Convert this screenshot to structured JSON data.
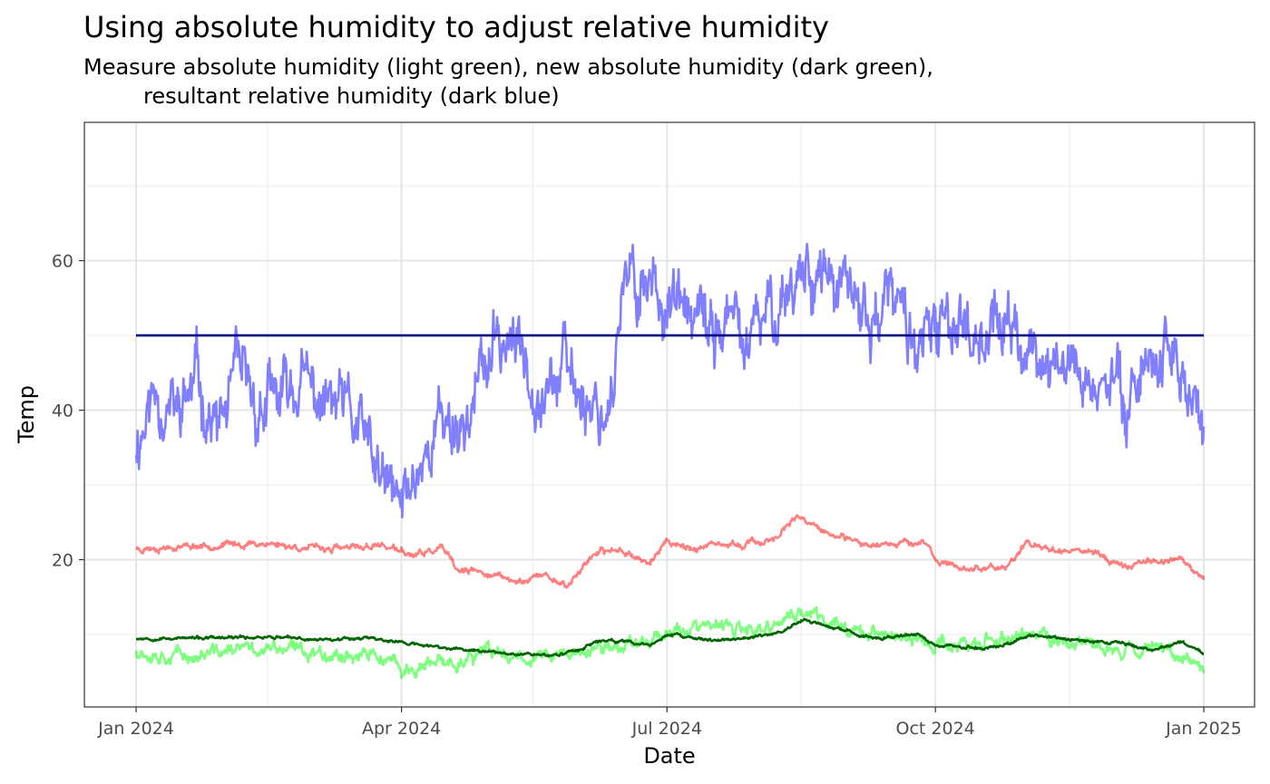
{
  "chart_data": {
    "type": "line",
    "title": "Using absolute humidity to adjust relative humidity",
    "subtitle_lines": [
      "Measure absolute humidity (light green), new absolute humidity (dark green),",
      "resultant relative humidity (dark blue)"
    ],
    "xlabel": "Date",
    "ylabel": "Temp",
    "x_range": [
      "2024-01-01",
      "2025-01-01"
    ],
    "ylim": [
      0.3,
      78.5
    ],
    "x_ticks": [
      {
        "date": "2024-01-01",
        "label": "Jan 2024"
      },
      {
        "date": "2024-04-01",
        "label": "Apr 2024"
      },
      {
        "date": "2024-07-01",
        "label": "Jul 2024"
      },
      {
        "date": "2024-10-01",
        "label": "Oct 2024"
      },
      {
        "date": "2025-01-01",
        "label": "Jan 2025"
      }
    ],
    "x_minor_ticks": [
      "2024-02-15",
      "2024-05-16",
      "2024-08-16",
      "2024-11-16"
    ],
    "y_ticks": [
      20,
      40,
      60
    ],
    "y_minor_ticks": [
      10,
      30,
      50,
      70
    ],
    "grid": true,
    "legend": "none",
    "series": [
      {
        "color": "#7f7fff",
        "opacity": 1,
        "noise": 5.5,
        "seed": 11,
        "points": [
          [
            "2024-01-01",
            36
          ],
          [
            "2024-01-08",
            43
          ],
          [
            "2024-01-15",
            39
          ],
          [
            "2024-01-22",
            44
          ],
          [
            "2024-01-29",
            37
          ],
          [
            "2024-02-05",
            44
          ],
          [
            "2024-02-12",
            40
          ],
          [
            "2024-02-19",
            41
          ],
          [
            "2024-02-26",
            44
          ],
          [
            "2024-03-04",
            41
          ],
          [
            "2024-03-11",
            40
          ],
          [
            "2024-03-18",
            37
          ],
          [
            "2024-03-25",
            30
          ],
          [
            "2024-04-01",
            27
          ],
          [
            "2024-04-08",
            34
          ],
          [
            "2024-04-15",
            39
          ],
          [
            "2024-04-22",
            38
          ],
          [
            "2024-04-29",
            45
          ],
          [
            "2024-05-06",
            50
          ],
          [
            "2024-05-13",
            47
          ],
          [
            "2024-05-20",
            44
          ],
          [
            "2024-05-27",
            45
          ],
          [
            "2024-06-03",
            42
          ],
          [
            "2024-06-10",
            40
          ],
          [
            "2024-06-17",
            56
          ],
          [
            "2024-06-24",
            58
          ],
          [
            "2024-07-01",
            55
          ],
          [
            "2024-07-08",
            52
          ],
          [
            "2024-07-15",
            50
          ],
          [
            "2024-07-22",
            52
          ],
          [
            "2024-07-29",
            48
          ],
          [
            "2024-08-05",
            53
          ],
          [
            "2024-08-12",
            57
          ],
          [
            "2024-08-19",
            60
          ],
          [
            "2024-08-26",
            57
          ],
          [
            "2024-09-02",
            54
          ],
          [
            "2024-09-09",
            52
          ],
          [
            "2024-09-16",
            55
          ],
          [
            "2024-09-23",
            50
          ],
          [
            "2024-09-30",
            48
          ],
          [
            "2024-10-07",
            53
          ],
          [
            "2024-10-14",
            51
          ],
          [
            "2024-10-21",
            52
          ],
          [
            "2024-10-28",
            50
          ],
          [
            "2024-11-04",
            47
          ],
          [
            "2024-11-11",
            45
          ],
          [
            "2024-11-18",
            47
          ],
          [
            "2024-11-25",
            43
          ],
          [
            "2024-12-02",
            42
          ],
          [
            "2024-12-09",
            45
          ],
          [
            "2024-12-16",
            48
          ],
          [
            "2024-12-23",
            47
          ],
          [
            "2025-01-01",
            37
          ]
        ]
      },
      {
        "color": "#000080",
        "opacity": 1,
        "noise": 0,
        "seed": 1,
        "points": [
          [
            "2024-01-01",
            50
          ],
          [
            "2025-01-01",
            50
          ]
        ]
      },
      {
        "color": "#ff0000",
        "opacity": 0.5,
        "noise": 0.55,
        "seed": 23,
        "points": [
          [
            "2024-01-01",
            21.5
          ],
          [
            "2024-01-15",
            21.8
          ],
          [
            "2024-02-01",
            22
          ],
          [
            "2024-02-15",
            22.2
          ],
          [
            "2024-03-01",
            21.5
          ],
          [
            "2024-03-15",
            21.5
          ],
          [
            "2024-03-25",
            22
          ],
          [
            "2024-04-05",
            20.5
          ],
          [
            "2024-04-15",
            21.5
          ],
          [
            "2024-04-20",
            18.5
          ],
          [
            "2024-05-01",
            18.2
          ],
          [
            "2024-05-10",
            17
          ],
          [
            "2024-05-20",
            18
          ],
          [
            "2024-05-28",
            16.5
          ],
          [
            "2024-06-05",
            20.5
          ],
          [
            "2024-06-15",
            21.5
          ],
          [
            "2024-06-25",
            19.5
          ],
          [
            "2024-07-01",
            22.5
          ],
          [
            "2024-07-10",
            21.5
          ],
          [
            "2024-07-25",
            22
          ],
          [
            "2024-08-05",
            22.5
          ],
          [
            "2024-08-15",
            25.5
          ],
          [
            "2024-08-25",
            23.5
          ],
          [
            "2024-09-05",
            22
          ],
          [
            "2024-09-20",
            22.5
          ],
          [
            "2024-09-28",
            22
          ],
          [
            "2024-10-02",
            19.5
          ],
          [
            "2024-10-15",
            18.8
          ],
          [
            "2024-10-25",
            19
          ],
          [
            "2024-11-01",
            22
          ],
          [
            "2024-11-12",
            21.5
          ],
          [
            "2024-11-25",
            21
          ],
          [
            "2024-12-05",
            19
          ],
          [
            "2024-12-15",
            20
          ],
          [
            "2024-12-25",
            20
          ],
          [
            "2025-01-01",
            17.5
          ]
        ]
      },
      {
        "color": "#00ff00",
        "opacity": 0.5,
        "noise": 1.2,
        "seed": 37,
        "points": [
          [
            "2024-01-01",
            8
          ],
          [
            "2024-01-20",
            7
          ],
          [
            "2024-02-05",
            8
          ],
          [
            "2024-02-20",
            8
          ],
          [
            "2024-03-10",
            7.5
          ],
          [
            "2024-03-25",
            7
          ],
          [
            "2024-04-01",
            5
          ],
          [
            "2024-04-15",
            6
          ],
          [
            "2024-05-01",
            7.5
          ],
          [
            "2024-05-20",
            7
          ],
          [
            "2024-06-01",
            7.5
          ],
          [
            "2024-06-15",
            8.5
          ],
          [
            "2024-06-25",
            9.5
          ],
          [
            "2024-07-01",
            10.5
          ],
          [
            "2024-07-20",
            11
          ],
          [
            "2024-08-01",
            10
          ],
          [
            "2024-08-15",
            13
          ],
          [
            "2024-09-01",
            11
          ],
          [
            "2024-09-20",
            9.5
          ],
          [
            "2024-10-01",
            8.5
          ],
          [
            "2024-10-20",
            9
          ],
          [
            "2024-11-01",
            10
          ],
          [
            "2024-11-15",
            9
          ],
          [
            "2024-12-01",
            8
          ],
          [
            "2024-12-20",
            8.5
          ],
          [
            "2025-01-01",
            5.5
          ]
        ]
      },
      {
        "color": "#006400",
        "opacity": 1,
        "noise": 0.25,
        "seed": 53,
        "points": [
          [
            "2024-01-01",
            9.5
          ],
          [
            "2024-02-01",
            9.5
          ],
          [
            "2024-02-15",
            9.7
          ],
          [
            "2024-03-01",
            9.3
          ],
          [
            "2024-03-20",
            9.6
          ],
          [
            "2024-04-05",
            8.7
          ],
          [
            "2024-04-20",
            8
          ],
          [
            "2024-05-10",
            7.5
          ],
          [
            "2024-05-25",
            7.2
          ],
          [
            "2024-06-10",
            9.3
          ],
          [
            "2024-06-25",
            8.5
          ],
          [
            "2024-07-01",
            10
          ],
          [
            "2024-07-15",
            9.2
          ],
          [
            "2024-08-01",
            9.6
          ],
          [
            "2024-08-10",
            10.5
          ],
          [
            "2024-08-17",
            12
          ],
          [
            "2024-08-25",
            11
          ],
          [
            "2024-09-10",
            9.5
          ],
          [
            "2024-09-25",
            10
          ],
          [
            "2024-10-01",
            8.5
          ],
          [
            "2024-10-20",
            8.2
          ],
          [
            "2024-11-05",
            10
          ],
          [
            "2024-11-15",
            9.2
          ],
          [
            "2024-12-01",
            9
          ],
          [
            "2024-12-15",
            8
          ],
          [
            "2024-12-25",
            9
          ],
          [
            "2025-01-01",
            7.5
          ]
        ]
      }
    ]
  }
}
